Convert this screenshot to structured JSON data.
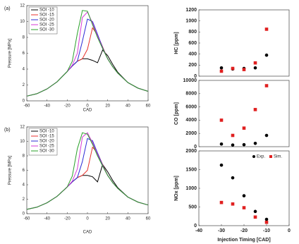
{
  "chart_data": [
    {
      "type": "line",
      "panel_label": "(a)",
      "x_label": "CAD",
      "y_label": "Pressure [MPa]",
      "x": [
        -60,
        -50,
        -40,
        -30,
        -20,
        -15,
        -10,
        -5,
        0,
        5,
        10,
        15,
        20,
        25,
        30,
        40,
        50,
        60
      ],
      "xlim": [
        -60,
        60
      ],
      "xticks": [
        -60,
        -40,
        -20,
        0,
        20,
        40,
        60
      ],
      "ylim": [
        0,
        12
      ],
      "yticks": [
        0,
        2,
        4,
        6,
        8,
        10,
        12
      ],
      "legend": "upper left",
      "series": [
        {
          "name": "SOI -10",
          "color": "#000000",
          "values": [
            0.6,
            0.9,
            1.5,
            2.4,
            3.7,
            4.4,
            5.0,
            5.3,
            5.3,
            5.1,
            4.8,
            6.4,
            5.7,
            4.6,
            3.6,
            2.3,
            1.6,
            1.2
          ]
        },
        {
          "name": "SOI -15",
          "color": "#e8322c",
          "values": [
            0.6,
            0.9,
            1.5,
            2.4,
            3.7,
            4.4,
            5.0,
            5.3,
            6.5,
            9.2,
            8.3,
            6.8,
            5.3,
            4.3,
            3.5,
            2.3,
            1.6,
            1.2
          ]
        },
        {
          "name": "SOI -20",
          "color": "#2b2bd6",
          "values": [
            0.6,
            0.9,
            1.5,
            2.4,
            3.7,
            4.4,
            5.0,
            7.5,
            10.3,
            10.0,
            8.4,
            6.7,
            5.3,
            4.3,
            3.5,
            2.3,
            1.6,
            1.2
          ]
        },
        {
          "name": "SOI -25",
          "color": "#d63ad6",
          "values": [
            0.6,
            0.9,
            1.5,
            2.4,
            3.7,
            4.5,
            6.0,
            10.5,
            11.2,
            9.8,
            8.2,
            6.6,
            5.3,
            4.3,
            3.5,
            2.3,
            1.6,
            1.2
          ]
        },
        {
          "name": "SOI -30",
          "color": "#2aa02a",
          "values": [
            0.6,
            0.9,
            1.5,
            2.4,
            3.7,
            5.0,
            8.5,
            11.4,
            11.3,
            9.6,
            8.0,
            6.6,
            5.3,
            4.3,
            3.5,
            2.3,
            1.6,
            1.2
          ]
        }
      ]
    },
    {
      "type": "line",
      "panel_label": "(b)",
      "x_label": "CAD",
      "y_label": "Pressure [MPa]",
      "x": [
        -60,
        -50,
        -40,
        -30,
        -20,
        -15,
        -10,
        -5,
        0,
        5,
        10,
        15,
        20,
        25,
        30,
        40,
        50,
        60
      ],
      "xlim": [
        -60,
        60
      ],
      "xticks": [
        -60,
        -40,
        -20,
        0,
        20,
        40,
        60
      ],
      "ylim": [
        0,
        12
      ],
      "yticks": [
        0,
        2,
        4,
        6,
        8,
        10,
        12
      ],
      "legend": "upper left",
      "series": [
        {
          "name": "SOI -10",
          "color": "#000000",
          "values": [
            0.6,
            0.9,
            1.5,
            2.4,
            3.7,
            4.4,
            5.0,
            5.3,
            5.3,
            5.1,
            4.4,
            6.8,
            5.8,
            4.6,
            3.6,
            2.3,
            1.6,
            1.2
          ]
        },
        {
          "name": "SOI -15",
          "color": "#e8322c",
          "values": [
            0.6,
            0.9,
            1.5,
            2.4,
            3.7,
            4.4,
            5.0,
            5.3,
            6.0,
            9.2,
            8.4,
            6.8,
            5.3,
            4.3,
            3.5,
            2.3,
            1.6,
            1.2
          ]
        },
        {
          "name": "SOI -20",
          "color": "#2b2bd6",
          "values": [
            0.6,
            0.9,
            1.5,
            2.4,
            3.7,
            4.4,
            5.0,
            7.2,
            10.4,
            10.1,
            8.4,
            6.7,
            5.3,
            4.3,
            3.5,
            2.3,
            1.6,
            1.2
          ]
        },
        {
          "name": "SOI -25",
          "color": "#d63ad6",
          "values": [
            0.6,
            0.9,
            1.5,
            2.4,
            3.7,
            4.5,
            6.2,
            10.6,
            11.2,
            9.8,
            8.2,
            6.6,
            5.3,
            4.3,
            3.5,
            2.3,
            1.6,
            1.2
          ]
        },
        {
          "name": "SOI -30",
          "color": "#2aa02a",
          "values": [
            0.6,
            0.9,
            1.5,
            2.4,
            3.7,
            5.2,
            9.0,
            11.2,
            11.0,
            9.6,
            8.0,
            6.6,
            5.3,
            4.3,
            3.5,
            2.3,
            1.6,
            1.2
          ]
        }
      ]
    },
    {
      "type": "scatter",
      "y_label": "HC [ppm]",
      "x": [
        -30,
        -25,
        -20,
        -15,
        -10
      ],
      "xlim": [
        -40,
        0
      ],
      "ylim": [
        0,
        1200
      ],
      "yticks": [
        0,
        200,
        400,
        600,
        800,
        1000,
        1200
      ],
      "series": [
        {
          "color": "#000000",
          "marker": "circle",
          "values": [
            150,
            130,
            140,
            150,
            380
          ]
        },
        {
          "color": "#e02020",
          "marker": "square",
          "values": [
            90,
            140,
            120,
            240,
            850
          ]
        }
      ]
    },
    {
      "type": "scatter",
      "y_label": "CO [ppm]",
      "x": [
        -30,
        -25,
        -20,
        -15,
        -10
      ],
      "xlim": [
        -40,
        0
      ],
      "ylim": [
        0,
        10000
      ],
      "yticks": [
        0,
        2000,
        4000,
        6000,
        8000,
        10000
      ],
      "series": [
        {
          "color": "#000000",
          "marker": "circle",
          "values": [
            400,
            250,
            300,
            500,
            1700
          ]
        },
        {
          "color": "#e02020",
          "marker": "square",
          "values": [
            4000,
            1700,
            2800,
            5600,
            9200
          ]
        }
      ]
    },
    {
      "type": "scatter",
      "y_label": "NOx [ppm]",
      "x_label": "Injection Timing [CAD]",
      "x": [
        -30,
        -25,
        -20,
        -15,
        -10
      ],
      "xlim": [
        -40,
        0
      ],
      "xticks": [
        -40,
        -30,
        -20,
        -10,
        0
      ],
      "ylim": [
        0,
        2000
      ],
      "yticks": [
        0,
        500,
        1000,
        1500,
        2000
      ],
      "legend": "upper right",
      "series": [
        {
          "name": "Exp.",
          "color": "#000000",
          "marker": "circle",
          "values": [
            1620,
            1280,
            800,
            380,
            170
          ]
        },
        {
          "name": "Sim.",
          "color": "#e02020",
          "marker": "square",
          "values": [
            620,
            580,
            480,
            230,
            90
          ]
        }
      ]
    }
  ]
}
